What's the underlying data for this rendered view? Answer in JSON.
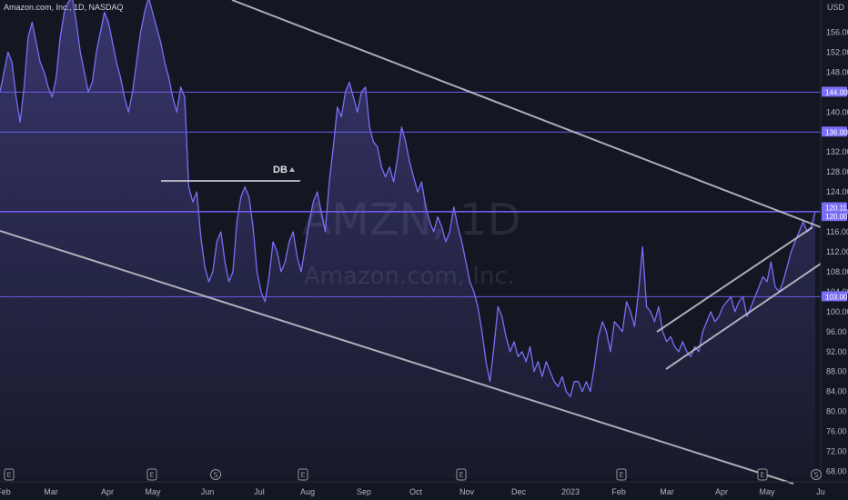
{
  "header": {
    "symbol_line": "Amazon.com, Inc., 1D, NASDAQ"
  },
  "watermark": {
    "ticker": "AMZN, 1D",
    "name": "Amazon.com, Inc."
  },
  "colors": {
    "background": "#131722",
    "price_line": "#7b6ef6",
    "area_fill": "#7b6ef6",
    "hline": "#6c5ce7",
    "trend_line": "#c8c8d0",
    "tag_bg": "#7b6ef6"
  },
  "chart_data": {
    "type": "area",
    "symbol": "AMZN",
    "currency": "USD",
    "ylim": [
      67,
      159
    ],
    "y_ticks": [
      68,
      72,
      76,
      80,
      84,
      88,
      92,
      96,
      100,
      104,
      108,
      112,
      116,
      120,
      124,
      128,
      132,
      136,
      140,
      144,
      148,
      152,
      156
    ],
    "x_tick_labels": [
      "Feb",
      "Mar",
      "Apr",
      "May",
      "Jun",
      "Jul",
      "Aug",
      "Sep",
      "Oct",
      "Nov",
      "Dec",
      "2023",
      "Feb",
      "Mar",
      "Apr",
      "May",
      "Ju"
    ],
    "series": [
      {
        "values": [
          144,
          148,
          152,
          150,
          143,
          138,
          145,
          155,
          158,
          154,
          150,
          148,
          145,
          143,
          147,
          155,
          160,
          162,
          163,
          158,
          152,
          148,
          144,
          146,
          152,
          156,
          160,
          158,
          154,
          150,
          147,
          143,
          140,
          144,
          150,
          156,
          160,
          163,
          160,
          157,
          154,
          150,
          147,
          143,
          140,
          145,
          143,
          125,
          122,
          124,
          115,
          109,
          106,
          108,
          114,
          116,
          110,
          106,
          108,
          118,
          123,
          125,
          123,
          117,
          108,
          104,
          102,
          107,
          114,
          112,
          108,
          110,
          114,
          116,
          111,
          108,
          113,
          118,
          122,
          124,
          120,
          116,
          126,
          133,
          141,
          139,
          144,
          146,
          143,
          140,
          144,
          145,
          137,
          134,
          133,
          129,
          127,
          129,
          126,
          131,
          137,
          134,
          130,
          127,
          124,
          126,
          121,
          118,
          116,
          119,
          117,
          114,
          116,
          121,
          117,
          114,
          110,
          106,
          104,
          101,
          96,
          90,
          86,
          93,
          101,
          99,
          95,
          92,
          94,
          91,
          92,
          90,
          93,
          88,
          90,
          87,
          90,
          88,
          86,
          85,
          87,
          84,
          83,
          86,
          86,
          84,
          86,
          84,
          89,
          95,
          98,
          96,
          92,
          98,
          97,
          96,
          102,
          100,
          97,
          104,
          113,
          101,
          100,
          98,
          101,
          96,
          94,
          95,
          93,
          92,
          94,
          92,
          91,
          93,
          92,
          96,
          98,
          100,
          98,
          99,
          101,
          102,
          103,
          100,
          102,
          103,
          99,
          101,
          103,
          105,
          107,
          106,
          110,
          105,
          104,
          106,
          109,
          112,
          114,
          116,
          118,
          116,
          117,
          120.11
        ]
      }
    ],
    "price_levels": [
      144.0,
      136.0,
      120.11,
      120.0,
      103.0
    ],
    "annotations": [
      {
        "label": "DB",
        "y": 125.0
      }
    ]
  }
}
